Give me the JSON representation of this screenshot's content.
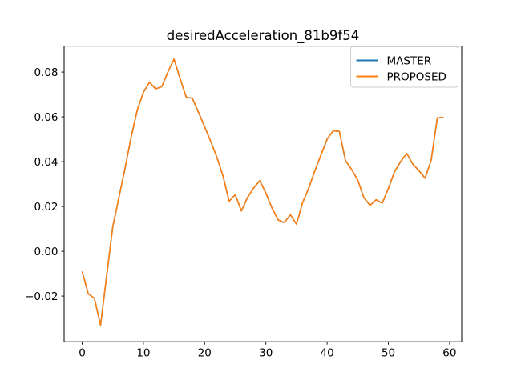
{
  "figure": {
    "background": "#ffffff",
    "axis_color": "#000000",
    "text_color": "#000000",
    "legend_border_color": "#cccccc"
  },
  "chart_data": {
    "type": "line",
    "title": "desiredAcceleration_81b9f54",
    "xlabel": "",
    "ylabel": "",
    "grid": false,
    "legend_position": "upper right",
    "xlim": [
      -2.95,
      61.98
    ],
    "ylim": [
      -0.0404,
      0.0916
    ],
    "xticks": [
      0,
      10,
      20,
      30,
      40,
      50,
      60
    ],
    "xtick_labels": [
      "0",
      "10",
      "20",
      "30",
      "40",
      "50",
      "60"
    ],
    "yticks": [
      -0.02,
      0.0,
      0.02,
      0.04,
      0.06,
      0.08
    ],
    "ytick_labels": [
      "−0.02",
      "0.00",
      "0.02",
      "0.04",
      "0.06",
      "0.08"
    ],
    "x": [
      0,
      1,
      2,
      3,
      4,
      5,
      6,
      7,
      8,
      9,
      10,
      11,
      12,
      13,
      14,
      15,
      16,
      17,
      18,
      19,
      20,
      21,
      22,
      23,
      24,
      25,
      26,
      27,
      28,
      29,
      30,
      31,
      32,
      33,
      34,
      35,
      36,
      37,
      38,
      39,
      40,
      41,
      42,
      43,
      44,
      45,
      46,
      47,
      48,
      49,
      50,
      51,
      52,
      53,
      54,
      55,
      56,
      57,
      58,
      59
    ],
    "series": [
      {
        "name": "MASTER",
        "color": "#1f77b4",
        "values": [
          -0.009,
          -0.019,
          -0.021,
          -0.033,
          -0.011,
          0.011,
          0.024,
          0.037,
          0.051,
          0.063,
          0.071,
          0.0755,
          0.0725,
          0.0735,
          0.08,
          0.0858,
          0.077,
          0.0687,
          0.0683,
          0.062,
          0.0556,
          0.049,
          0.042,
          0.0336,
          0.0223,
          0.0253,
          0.018,
          0.024,
          0.0282,
          0.0315,
          0.026,
          0.0193,
          0.014,
          0.0128,
          0.0163,
          0.0121,
          0.0217,
          0.0282,
          0.036,
          0.043,
          0.05,
          0.0538,
          0.0535,
          0.0405,
          0.0365,
          0.0318,
          0.024,
          0.0205,
          0.023,
          0.0215,
          0.028,
          0.0354,
          0.04,
          0.0437,
          0.0389,
          0.036,
          0.0326,
          0.0407,
          0.0595,
          0.0598
        ]
      },
      {
        "name": "PROPOSED",
        "color": "#ff7f0e",
        "values": [
          -0.009,
          -0.019,
          -0.021,
          -0.033,
          -0.011,
          0.011,
          0.024,
          0.037,
          0.051,
          0.063,
          0.071,
          0.0755,
          0.0725,
          0.0735,
          0.08,
          0.0858,
          0.077,
          0.0687,
          0.0683,
          0.062,
          0.0556,
          0.049,
          0.042,
          0.0336,
          0.0223,
          0.0253,
          0.018,
          0.024,
          0.0282,
          0.0315,
          0.026,
          0.0193,
          0.014,
          0.0128,
          0.0163,
          0.0121,
          0.0217,
          0.0282,
          0.036,
          0.043,
          0.05,
          0.0538,
          0.0535,
          0.0405,
          0.0365,
          0.0318,
          0.024,
          0.0205,
          0.023,
          0.0215,
          0.028,
          0.0354,
          0.04,
          0.0437,
          0.0389,
          0.036,
          0.0326,
          0.0407,
          0.0595,
          0.0598
        ]
      }
    ]
  }
}
